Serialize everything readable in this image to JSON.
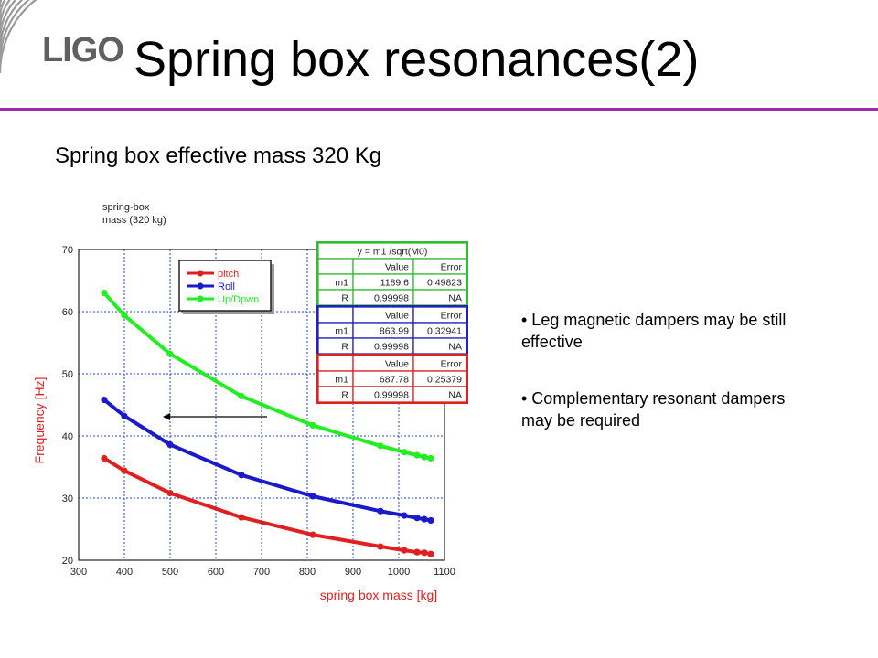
{
  "header": {
    "logo_text": "LIGO",
    "title": "Spring box resonances(2)",
    "accent_color": "#9b2fa0"
  },
  "subtitle": "Spring box effective mass 320 Kg",
  "bullets": [
    "• Leg magnetic dampers may be still effective",
    "• Complementary resonant dampers may be required"
  ],
  "chart_data": {
    "type": "scatter",
    "annotation": "spring-box\nmass (320 kg)",
    "xlabel": "spring box mass [kg]",
    "ylabel": "Frequency [Hz]",
    "xlim": [
      300,
      1100
    ],
    "ylim": [
      20,
      70
    ],
    "xticks": [
      300,
      400,
      500,
      600,
      700,
      800,
      900,
      1000,
      1100
    ],
    "yticks": [
      20,
      30,
      40,
      50,
      60,
      70
    ],
    "grid": true,
    "legend_position": "top-left",
    "x": [
      356,
      400,
      500,
      656,
      812,
      960,
      1012,
      1040,
      1056,
      1070
    ],
    "series": [
      {
        "name": "pitch",
        "color": "#e02020",
        "values": [
          36.4,
          34.4,
          30.8,
          26.9,
          24.1,
          22.2,
          21.6,
          21.3,
          21.2,
          21.0
        ]
      },
      {
        "name": "Roll",
        "color": "#1a1acc",
        "values": [
          45.8,
          43.2,
          38.6,
          33.7,
          30.3,
          27.9,
          27.2,
          26.8,
          26.6,
          26.4
        ]
      },
      {
        "name": "Up/Dpwn",
        "color": "#22ee22",
        "values": [
          63.0,
          59.4,
          53.2,
          46.4,
          41.7,
          38.4,
          37.4,
          36.9,
          36.6,
          36.4
        ]
      }
    ],
    "fit_tables": [
      {
        "color": "#33bb33",
        "formula": "y = m1 /sqrt(M0)",
        "headers": [
          "",
          "Value",
          "Error"
        ],
        "rows": [
          [
            "m1",
            "1189.6",
            "0.49823"
          ],
          [
            "R",
            "0.99998",
            "NA"
          ]
        ]
      },
      {
        "color": "#2222bb",
        "headers": [
          "",
          "Value",
          "Error"
        ],
        "rows": [
          [
            "m1",
            "863.99",
            "0.32941"
          ],
          [
            "R",
            "0.99998",
            "NA"
          ]
        ]
      },
      {
        "color": "#dd2222",
        "headers": [
          "",
          "Value",
          "Error"
        ],
        "rows": [
          [
            "m1",
            "687.78",
            "0.25379"
          ],
          [
            "R",
            "0.99998",
            "NA"
          ]
        ]
      }
    ]
  }
}
